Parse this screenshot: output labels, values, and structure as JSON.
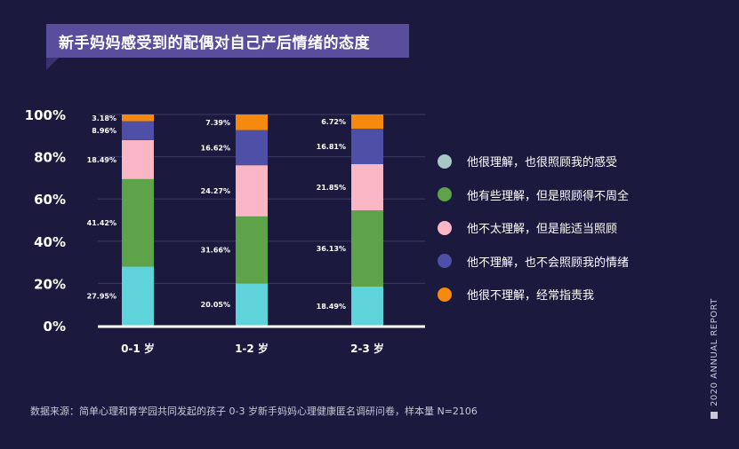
{
  "title": "新手妈妈感受到的配偶对自己产后情绪的态度",
  "source_note": "数据来源：简单心理和育学园共同发起的孩子 0-3 岁新手妈妈心理健康匿名调研问卷，样本量 N=2106",
  "side_label": "2020 ANNUAL REPORT",
  "chart_data": {
    "type": "bar",
    "stacked": true,
    "categories": [
      "0-1 岁",
      "1-2 岁",
      "2-3 岁"
    ],
    "y_ticks": [
      "0%",
      "20%",
      "40%",
      "60%",
      "80%",
      "100%"
    ],
    "ylim": [
      0,
      100
    ],
    "grid": true,
    "legend_position": "right",
    "series": [
      {
        "name": "他很理解，也很照顾我的感受",
        "color": "#5fd3da",
        "values": [
          27.95,
          20.05,
          18.49
        ],
        "labels": [
          "27.95%",
          "20.05%",
          "18.49%"
        ]
      },
      {
        "name": "他有些理解，但是照顾得不周全",
        "color": "#5ea34a",
        "values": [
          41.42,
          31.66,
          36.13
        ],
        "labels": [
          "41.42%",
          "31.66%",
          "36.13%"
        ]
      },
      {
        "name": "他不太理解，但是能适当照顾",
        "color": "#f9b7c6",
        "values": [
          18.49,
          24.27,
          21.85
        ],
        "labels": [
          "18.49%",
          "24.27%",
          "21.85%"
        ]
      },
      {
        "name": "他不理解，也不会照顾我的情绪",
        "color": "#4e4fa6",
        "values": [
          8.96,
          16.62,
          16.81
        ],
        "labels": [
          "8.96%",
          "16.62%",
          "16.81%"
        ]
      },
      {
        "name": "他很不理解，经常指责我",
        "color": "#f58a0e",
        "values": [
          3.18,
          7.39,
          6.72
        ],
        "labels": [
          "3.18%",
          "7.39%",
          "6.72%"
        ]
      }
    ],
    "legend_colors": [
      "#a8c8c8",
      "#5ea34a",
      "#f9b7c6",
      "#4e4fa6",
      "#f58a0e"
    ]
  }
}
